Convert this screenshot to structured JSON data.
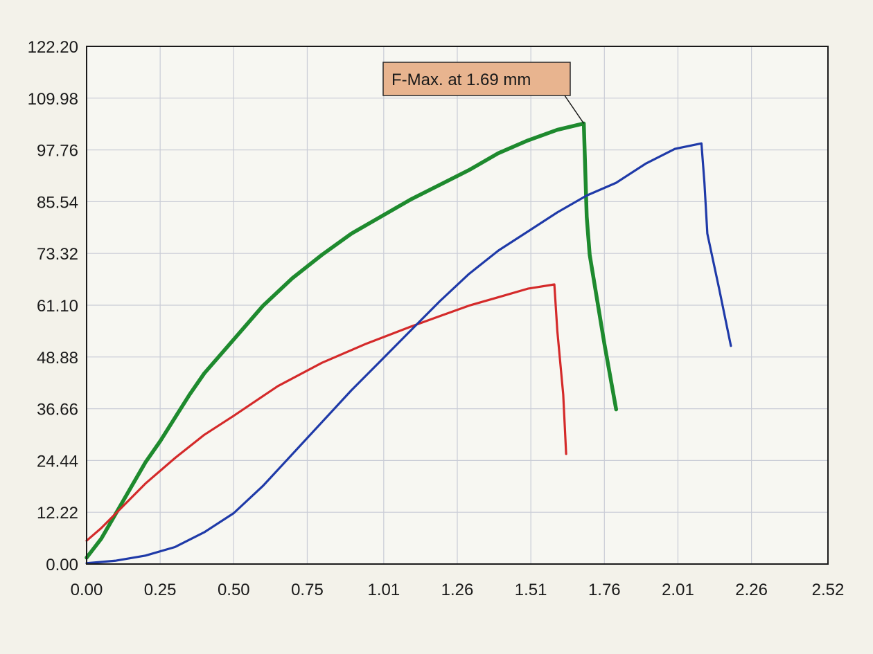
{
  "chart_data": {
    "type": "line",
    "title": "",
    "xlabel": "",
    "ylabel": "",
    "xlim": [
      0,
      2.52
    ],
    "ylim": [
      0,
      122.2
    ],
    "x_ticks": [
      0.0,
      0.25,
      0.5,
      0.75,
      1.01,
      1.26,
      1.51,
      1.76,
      2.01,
      2.26,
      2.52
    ],
    "x_tick_labels": [
      "0.00",
      "0.25",
      "0.50",
      "0.75",
      "1.01",
      "1.26",
      "1.51",
      "1.76",
      "2.01",
      "2.26",
      "2.52"
    ],
    "y_ticks": [
      0.0,
      12.22,
      24.44,
      36.66,
      48.88,
      61.1,
      73.32,
      85.54,
      97.76,
      109.98,
      122.2
    ],
    "y_tick_labels": [
      "0.00",
      "12.22",
      "24.44",
      "36.66",
      "48.88",
      "61.10",
      "73.32",
      "85.54",
      "97.76",
      "109.98",
      "122.20"
    ],
    "grid": true,
    "series": [
      {
        "name": "green",
        "color": "#1e8a2e",
        "points": [
          [
            0.0,
            1.5
          ],
          [
            0.05,
            6
          ],
          [
            0.1,
            12
          ],
          [
            0.15,
            18
          ],
          [
            0.2,
            24
          ],
          [
            0.25,
            29
          ],
          [
            0.3,
            34.5
          ],
          [
            0.35,
            40
          ],
          [
            0.4,
            45
          ],
          [
            0.5,
            53
          ],
          [
            0.6,
            61
          ],
          [
            0.7,
            67.5
          ],
          [
            0.8,
            73
          ],
          [
            0.9,
            78
          ],
          [
            1.0,
            82
          ],
          [
            1.1,
            86
          ],
          [
            1.2,
            89.5
          ],
          [
            1.3,
            93
          ],
          [
            1.4,
            97
          ],
          [
            1.5,
            100
          ],
          [
            1.6,
            102.5
          ],
          [
            1.69,
            104
          ],
          [
            1.7,
            82
          ],
          [
            1.71,
            73
          ],
          [
            1.76,
            52
          ],
          [
            1.8,
            36.5
          ]
        ]
      },
      {
        "name": "red",
        "color": "#d42a2a",
        "points": [
          [
            0.0,
            5.5
          ],
          [
            0.05,
            8.5
          ],
          [
            0.1,
            12
          ],
          [
            0.15,
            15.5
          ],
          [
            0.2,
            19
          ],
          [
            0.3,
            25
          ],
          [
            0.4,
            30.5
          ],
          [
            0.5,
            35
          ],
          [
            0.65,
            42
          ],
          [
            0.8,
            47.5
          ],
          [
            0.95,
            52
          ],
          [
            1.1,
            56
          ],
          [
            1.2,
            58.5
          ],
          [
            1.3,
            61
          ],
          [
            1.4,
            63
          ],
          [
            1.5,
            65
          ],
          [
            1.59,
            66
          ],
          [
            1.6,
            55
          ],
          [
            1.62,
            40
          ],
          [
            1.63,
            26
          ]
        ]
      },
      {
        "name": "blue",
        "color": "#1f3aa8",
        "points": [
          [
            0.0,
            0.2
          ],
          [
            0.1,
            0.8
          ],
          [
            0.2,
            2
          ],
          [
            0.3,
            4
          ],
          [
            0.4,
            7.5
          ],
          [
            0.5,
            12
          ],
          [
            0.6,
            18.5
          ],
          [
            0.7,
            26
          ],
          [
            0.8,
            33.5
          ],
          [
            0.9,
            41
          ],
          [
            1.0,
            48
          ],
          [
            1.1,
            55
          ],
          [
            1.2,
            62
          ],
          [
            1.3,
            68.5
          ],
          [
            1.4,
            74
          ],
          [
            1.5,
            78.5
          ],
          [
            1.6,
            83
          ],
          [
            1.7,
            87
          ],
          [
            1.8,
            90
          ],
          [
            1.9,
            94.5
          ],
          [
            2.0,
            98
          ],
          [
            2.09,
            99.3
          ],
          [
            2.1,
            90
          ],
          [
            2.11,
            78
          ],
          [
            2.15,
            65
          ],
          [
            2.19,
            51.5
          ]
        ]
      }
    ],
    "annotations": [
      {
        "text": "F-Max. at 1.69 mm",
        "x": 1.69,
        "y": 104
      }
    ]
  }
}
